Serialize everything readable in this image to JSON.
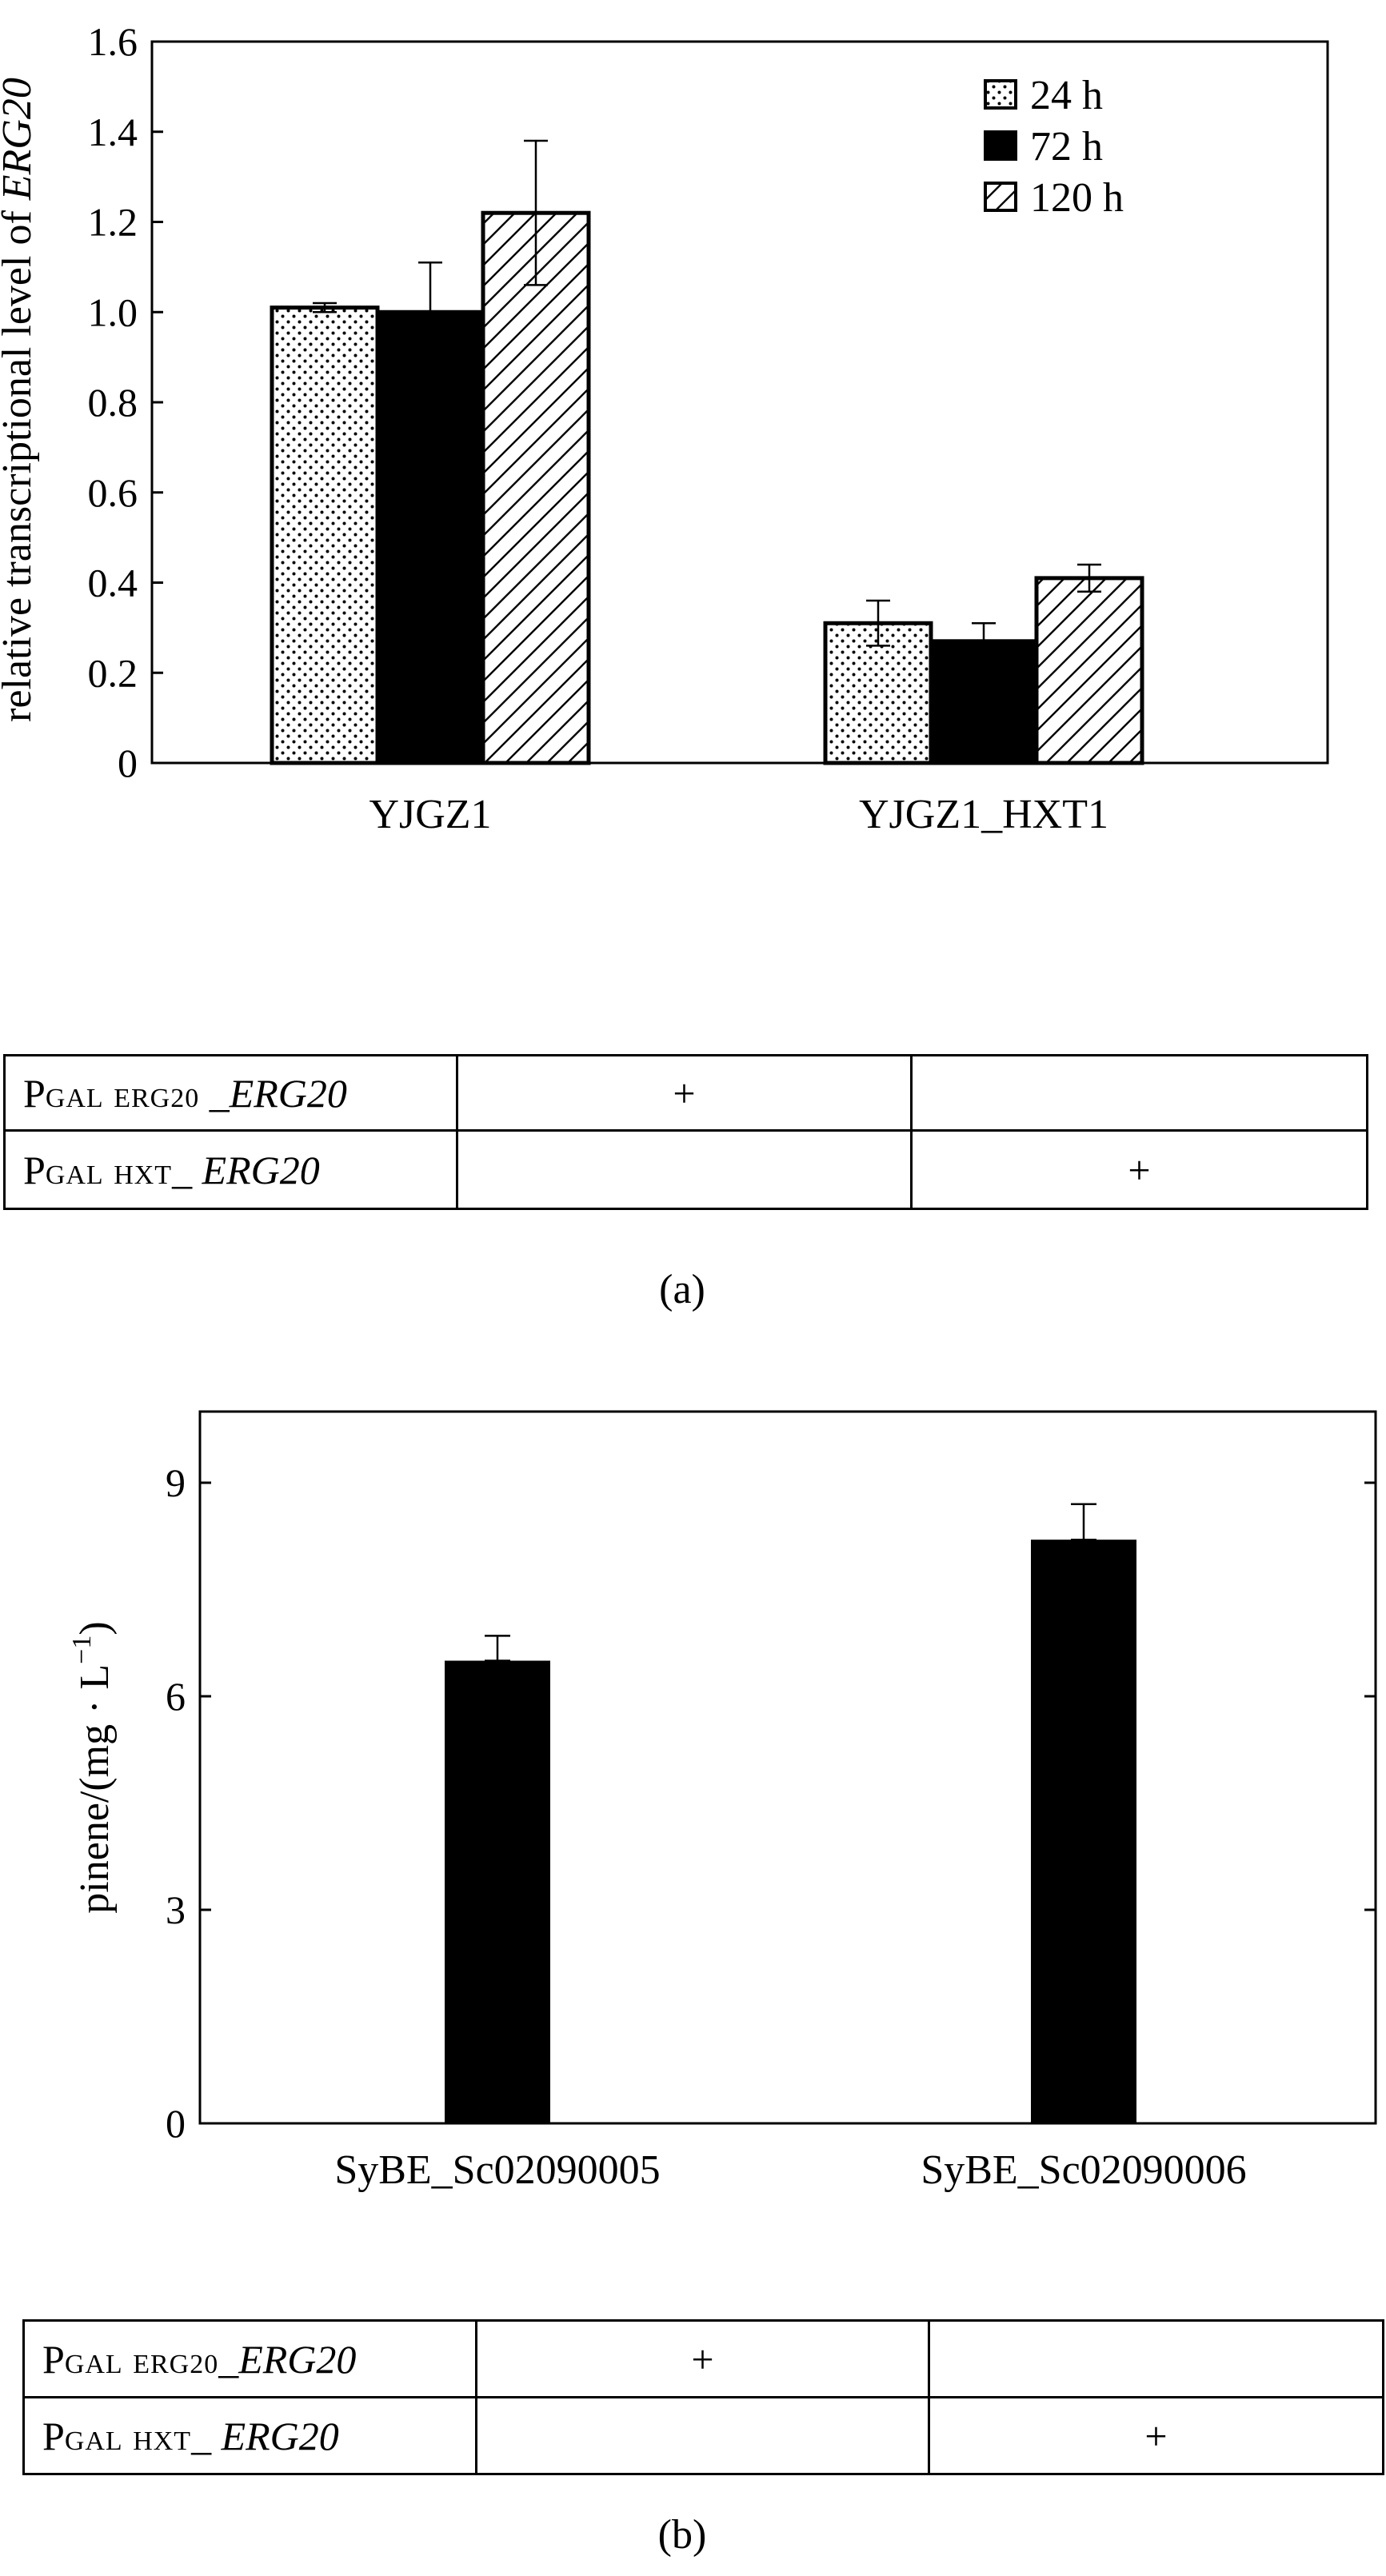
{
  "chart_data": [
    {
      "type": "bar",
      "panel": "(a)",
      "ylabel_prefix": "relative transcriptional level of ",
      "ylabel_gene": "ERG20",
      "ylim": [
        0,
        1.6
      ],
      "yticks": [
        "0",
        "0.2",
        "0.4",
        "0.6",
        "0.8",
        "1.0",
        "1.2",
        "1.4",
        "1.6"
      ],
      "categories": [
        "YJGZ1",
        "YJGZ1_HXT1"
      ],
      "legend_position": "top-right",
      "series": [
        {
          "name": "24 h",
          "pattern": "dots",
          "values": [
            1.01,
            0.31
          ],
          "errors": [
            0.01,
            0.05
          ]
        },
        {
          "name": "72 h",
          "pattern": "solid",
          "values": [
            1.0,
            0.27
          ],
          "errors": [
            0.11,
            0.04
          ]
        },
        {
          "name": "120 h",
          "pattern": "hatch",
          "values": [
            1.22,
            0.41
          ],
          "errors": [
            0.16,
            0.03
          ]
        }
      ],
      "colors": {
        "fill": "#000000",
        "background": "#ffffff"
      }
    },
    {
      "type": "bar",
      "panel": "(b)",
      "ylabel": "pinene/(mg · L",
      "ylabel_exp": "−1",
      "ylabel_close": ")",
      "ylim": [
        0,
        10
      ],
      "yticks": [
        "0",
        "3",
        "6",
        "9"
      ],
      "categories": [
        "SyBE_Sc02090005",
        "SyBE_Sc02090006"
      ],
      "series": [
        {
          "values": [
            6.5,
            8.2
          ],
          "errors": [
            0.35,
            0.5
          ]
        }
      ],
      "colors": {
        "fill": "#000000"
      }
    }
  ],
  "tables": {
    "a": {
      "rows": [
        {
          "p": "P",
          "gal": "GAL",
          "tag": "ERG20",
          "sep": " _",
          "gene": "ERG20",
          "marks": [
            "+",
            ""
          ]
        },
        {
          "p": "P",
          "gal": "GAL",
          "tag": "HXT",
          "sep": "_ ",
          "gene": "ERG20",
          "marks": [
            "",
            "+"
          ]
        }
      ]
    },
    "b": {
      "rows": [
        {
          "p": "P",
          "gal": "GAL",
          "tag": "ERG20",
          "sep": "_",
          "gene": "ERG20",
          "marks": [
            "+",
            ""
          ]
        },
        {
          "p": "P",
          "gal": "GAL",
          "tag": "HXT",
          "sep": "_ ",
          "gene": "ERG20",
          "marks": [
            "",
            "+"
          ]
        }
      ]
    }
  },
  "captions": {
    "a": "(a)",
    "b": "(b)"
  }
}
